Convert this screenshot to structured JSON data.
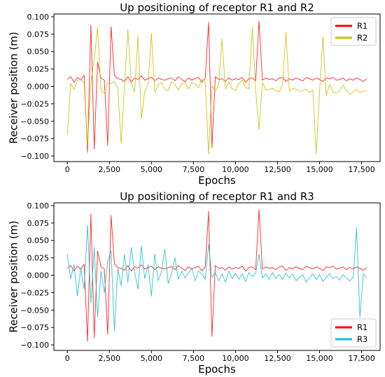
{
  "chart_data": [
    {
      "type": "line",
      "title": "Up positioning of receptor R1 and R2",
      "xlabel": "Epochs",
      "ylabel": "Receiver position (m)",
      "xlim": [
        -800,
        18600
      ],
      "ylim": [
        -0.108,
        0.104
      ],
      "grid": false,
      "legend_position": "top-right",
      "x_ticks": [
        {
          "value": 0,
          "label": "0"
        },
        {
          "value": 2500,
          "label": "2,500"
        },
        {
          "value": 5000,
          "label": "5,000"
        },
        {
          "value": 7500,
          "label": "7,500"
        },
        {
          "value": 10000,
          "label": "10,000"
        },
        {
          "value": 12500,
          "label": "12,500"
        },
        {
          "value": 15000,
          "label": "15,000"
        },
        {
          "value": 17500,
          "label": "17,500"
        }
      ],
      "y_ticks": [
        {
          "value": 0.1,
          "label": "0.100"
        },
        {
          "value": 0.075,
          "label": "0.075"
        },
        {
          "value": 0.05,
          "label": "0.050"
        },
        {
          "value": 0.025,
          "label": "0.025"
        },
        {
          "value": 0.0,
          "label": "0.000"
        },
        {
          "value": -0.025,
          "label": "−0.025"
        },
        {
          "value": -0.05,
          "label": "−0.050"
        },
        {
          "value": -0.075,
          "label": "−0.075"
        },
        {
          "value": -0.1,
          "label": "−0.100"
        }
      ],
      "series": [
        {
          "name": "R1",
          "color": "#ff0000",
          "x_start": 0,
          "x_step": 200,
          "values": [
            0.01,
            0.014,
            0.006,
            0.013,
            0.009,
            0.016,
            -0.095,
            0.088,
            -0.09,
            0.035,
            0.012,
            0.009,
            -0.085,
            0.086,
            0.016,
            0.011,
            0.01,
            0.007,
            0.014,
            0.006,
            0.012,
            0.01,
            0.015,
            0.009,
            0.011,
            0.013,
            0.008,
            0.012,
            0.01,
            0.009,
            0.011,
            0.012,
            0.008,
            0.014,
            0.01,
            0.007,
            0.012,
            0.009,
            0.011,
            0.013,
            0.006,
            0.012,
            0.092,
            -0.088,
            0.014,
            0.01,
            0.011,
            0.007,
            0.012,
            0.009,
            0.011,
            0.01,
            0.013,
            0.006,
            0.011,
            0.012,
            0.008,
            0.094,
            0.009,
            0.012,
            0.01,
            0.011,
            0.008,
            0.012,
            0.013,
            0.007,
            0.011,
            0.009,
            0.012,
            0.01,
            0.008,
            0.013,
            0.011,
            0.009,
            0.012,
            0.01,
            0.007,
            0.012,
            0.011,
            0.013,
            0.009,
            0.01,
            0.012,
            0.008,
            0.011,
            0.009,
            0.012,
            0.01,
            0.007,
            0.011
          ]
        },
        {
          "name": "R2",
          "color": "#c2c200",
          "x_start": 0,
          "x_step": 200,
          "values": [
            -0.07,
            0.004,
            -0.004,
            0.009,
            0.01,
            0.004,
            -0.085,
            0.006,
            0.039,
            0.085,
            -0.006,
            -0.01,
            0.005,
            0.004,
            0.007,
            -0.003,
            -0.082,
            0.003,
            0.082,
            0.005,
            -0.008,
            0.072,
            -0.047,
            -0.007,
            0.003,
            0.076,
            -0.008,
            0.002,
            0.006,
            -0.004,
            -0.006,
            0.007,
            0.003,
            -0.005,
            0.003,
            0.007,
            -0.004,
            0.006,
            0.003,
            -0.002,
            0.01,
            0.005,
            -0.097,
            0.001,
            -0.007,
            0.003,
            0.068,
            -0.004,
            0.006,
            -0.003,
            -0.006,
            0.004,
            0.009,
            -0.002,
            -0.003,
            0.085,
            -0.006,
            -0.062,
            0.006,
            -0.005,
            -0.004,
            -0.003,
            -0.006,
            -0.008,
            0.003,
            0.078,
            -0.006,
            -0.003,
            -0.004,
            -0.007,
            -0.006,
            -0.004,
            -0.009,
            -0.005,
            -0.097,
            -0.008,
            0.071,
            -0.013,
            0.003,
            -0.008,
            -0.01,
            -0.006,
            0.002,
            -0.006,
            -0.011,
            -0.008,
            -0.004,
            -0.009,
            -0.007,
            -0.006
          ]
        }
      ]
    },
    {
      "type": "line",
      "title": "Up positioning of receptor R1 and R3",
      "xlabel": "Epochs",
      "ylabel": "Receiver position (m)",
      "xlim": [
        -800,
        18600
      ],
      "ylim": [
        -0.108,
        0.104
      ],
      "grid": false,
      "legend_position": "bottom-right",
      "x_ticks": [
        {
          "value": 0,
          "label": "0"
        },
        {
          "value": 2500,
          "label": "2,500"
        },
        {
          "value": 5000,
          "label": "5,000"
        },
        {
          "value": 7500,
          "label": "7,500"
        },
        {
          "value": 10000,
          "label": "10,000"
        },
        {
          "value": 12500,
          "label": "12,500"
        },
        {
          "value": 15000,
          "label": "15,000"
        },
        {
          "value": 17500,
          "label": "17,500"
        }
      ],
      "y_ticks": [
        {
          "value": 0.1,
          "label": "0.100"
        },
        {
          "value": 0.075,
          "label": "0.075"
        },
        {
          "value": 0.05,
          "label": "0.050"
        },
        {
          "value": 0.025,
          "label": "0.025"
        },
        {
          "value": 0.0,
          "label": "0.000"
        },
        {
          "value": -0.025,
          "label": "−0.025"
        },
        {
          "value": -0.05,
          "label": "−0.050"
        },
        {
          "value": -0.075,
          "label": "−0.075"
        },
        {
          "value": -0.1,
          "label": "−0.100"
        }
      ],
      "series": [
        {
          "name": "R1",
          "color": "#ff0000",
          "x_start": 0,
          "x_step": 200,
          "values": [
            0.01,
            0.014,
            0.006,
            0.013,
            0.009,
            0.016,
            -0.095,
            0.088,
            -0.09,
            0.035,
            0.012,
            0.009,
            -0.085,
            0.086,
            0.016,
            0.011,
            0.01,
            0.007,
            0.014,
            0.006,
            0.012,
            0.01,
            0.015,
            0.009,
            0.011,
            0.013,
            0.008,
            0.012,
            0.01,
            0.009,
            0.011,
            0.012,
            0.008,
            0.014,
            0.01,
            0.007,
            0.012,
            0.009,
            0.011,
            0.013,
            0.006,
            0.012,
            0.092,
            -0.088,
            0.014,
            0.01,
            0.011,
            0.007,
            0.012,
            0.009,
            0.011,
            0.01,
            0.013,
            0.006,
            0.011,
            0.012,
            0.008,
            0.094,
            0.009,
            0.012,
            0.01,
            0.011,
            0.008,
            0.012,
            0.013,
            0.007,
            0.011,
            0.009,
            0.012,
            0.01,
            0.008,
            0.013,
            0.011,
            0.009,
            0.012,
            0.01,
            0.007,
            0.012,
            0.011,
            0.013,
            0.009,
            0.01,
            0.012,
            0.008,
            0.011,
            0.009,
            0.012,
            0.01,
            0.007,
            0.011
          ]
        },
        {
          "name": "R3",
          "color": "#17becf",
          "x_start": 0,
          "x_step": 200,
          "values": [
            0.03,
            -0.005,
            0.015,
            -0.03,
            0.01,
            -0.02,
            0.072,
            -0.04,
            0.04,
            -0.06,
            0.005,
            -0.025,
            0.02,
            0.035,
            -0.08,
            0.01,
            -0.015,
            0.03,
            -0.01,
            0.04,
            0.005,
            -0.02,
            0.042,
            -0.005,
            0.015,
            -0.03,
            0.03,
            -0.008,
            0.005,
            0.038,
            -0.012,
            0.002,
            0.025,
            -0.006,
            0.006,
            -0.004,
            0.003,
            0.01,
            -0.008,
            0.006,
            0.002,
            -0.006,
            0.045,
            -0.003,
            0.004,
            -0.008,
            0.002,
            -0.01,
            0.006,
            -0.005,
            0.003,
            -0.006,
            0.002,
            -0.009,
            0.004,
            -0.002,
            0.003,
            0.03,
            -0.004,
            0.002,
            -0.006,
            0.004,
            -0.005,
            0.001,
            -0.006,
            0.003,
            -0.004,
            0.002,
            -0.008,
            -0.003,
            0.001,
            -0.01,
            -0.004,
            0.002,
            -0.006,
            0.001,
            -0.009,
            -0.003,
            0.002,
            -0.005,
            -0.002,
            -0.007,
            0.001,
            -0.004,
            -0.008,
            -0.003,
            0.068,
            -0.06,
            0.002,
            -0.004
          ]
        }
      ]
    }
  ]
}
